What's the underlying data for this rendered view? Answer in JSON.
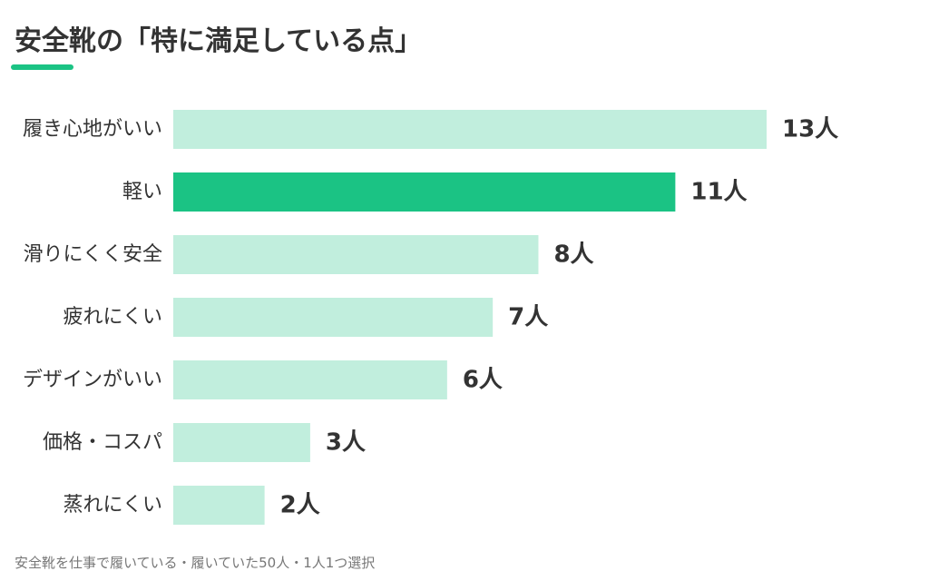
{
  "colors": {
    "accent": "#1bc384",
    "bar_default": "#c1eedd",
    "title_text": "#333333",
    "label_text": "#333333",
    "footnote_text": "#777777"
  },
  "chart_data": {
    "type": "bar",
    "orientation": "horizontal",
    "title": "安全靴の「特に満足している点」",
    "categories": [
      "履き心地がいい",
      "軽い",
      "滑りにくく安全",
      "疲れにくい",
      "デザインがいい",
      "価格・コスパ",
      "蒸れにくい"
    ],
    "values": [
      13,
      11,
      8,
      7,
      6,
      3,
      2
    ],
    "value_suffix": "人",
    "highlight_index": 1,
    "xlim": [
      0,
      13
    ],
    "grid": false,
    "legend": "none",
    "footnote": "安全靴を仕事で履いている・履いていた50人・1人1つ選択"
  }
}
